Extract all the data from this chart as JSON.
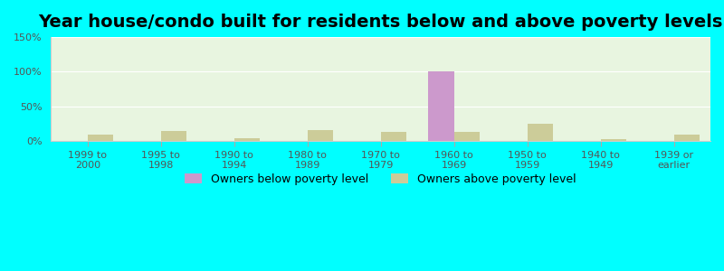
{
  "title": "Year house/condo built for residents below and above poverty levels",
  "categories": [
    "1999 to\n2000",
    "1995 to\n1998",
    "1990 to\n1994",
    "1980 to\n1989",
    "1970 to\n1979",
    "1960 to\n1969",
    "1950 to\n1959",
    "1940 to\n1949",
    "1939 or\nearlier"
  ],
  "below_poverty": [
    0,
    0,
    0,
    0,
    0,
    100,
    0,
    0,
    0
  ],
  "above_poverty": [
    9,
    15,
    4,
    16,
    13,
    13,
    25,
    3,
    9
  ],
  "below_color": "#cc99cc",
  "above_color": "#cccc99",
  "background_color": "#e8f5e0",
  "outer_background": "#00ffff",
  "ylim": [
    0,
    150
  ],
  "yticks": [
    0,
    50,
    100,
    150
  ],
  "ytick_labels": [
    "0%",
    "50%",
    "100%",
    "150%"
  ],
  "bar_width": 0.35,
  "legend_below": "Owners below poverty level",
  "legend_above": "Owners above poverty level",
  "title_fontsize": 14,
  "tick_fontsize": 8,
  "legend_fontsize": 9
}
